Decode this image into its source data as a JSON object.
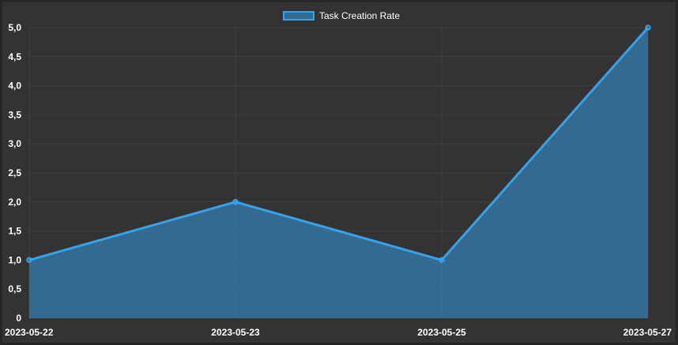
{
  "chart_data": {
    "type": "area",
    "title": "",
    "xlabel": "",
    "ylabel": "",
    "categories": [
      "2023-05-22",
      "2023-05-23",
      "2023-05-25",
      "2023-05-27"
    ],
    "series": [
      {
        "name": "Task Creation Rate",
        "values": [
          1,
          2,
          1,
          5
        ]
      }
    ],
    "ylim": [
      0,
      5
    ],
    "y_ticks": [
      "0",
      "0,5",
      "1,0",
      "1,5",
      "2,0",
      "2,5",
      "3,0",
      "3,5",
      "4,0",
      "4,5",
      "5,0"
    ],
    "grid": true,
    "legend_position": "top-center",
    "colors": {
      "line": "#36a2eb",
      "fill": "rgba(54,162,235,0.5)",
      "grid": "#3f3f3f",
      "background": "#333333",
      "text": "#ffffff"
    }
  }
}
